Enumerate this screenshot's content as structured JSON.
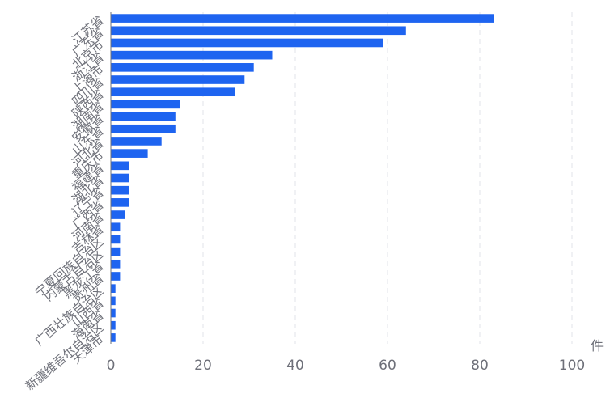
{
  "chart_data": {
    "type": "bar",
    "orientation": "horizontal",
    "x_unit": "件",
    "xlim": [
      0,
      100
    ],
    "x_ticks": [
      0,
      20,
      40,
      60,
      80,
      100
    ],
    "grid": true,
    "bar_color": "#1e64f0",
    "categories": [
      "江苏省",
      "广东省",
      "北京市",
      "浙江省",
      "上海市",
      "四川省",
      "陕西省",
      "湖南省",
      "安徽省",
      "山东省",
      "河北省",
      "重庆市",
      "福建省",
      "湖北省",
      "辽宁省",
      "广西省",
      "河南省",
      "吉林省",
      "宁夏回族自治区",
      "内蒙古自治区",
      "黑龙江省",
      "贵州省",
      "广西壮族自治区",
      "山西省",
      "海南省",
      "新疆维吾尔自治区",
      "天津市"
    ],
    "values": [
      83,
      64,
      59,
      35,
      31,
      29,
      27,
      15,
      14,
      14,
      11,
      8,
      4,
      4,
      4,
      4,
      3,
      2,
      2,
      2,
      2,
      2,
      1,
      1,
      1,
      1,
      1
    ]
  }
}
